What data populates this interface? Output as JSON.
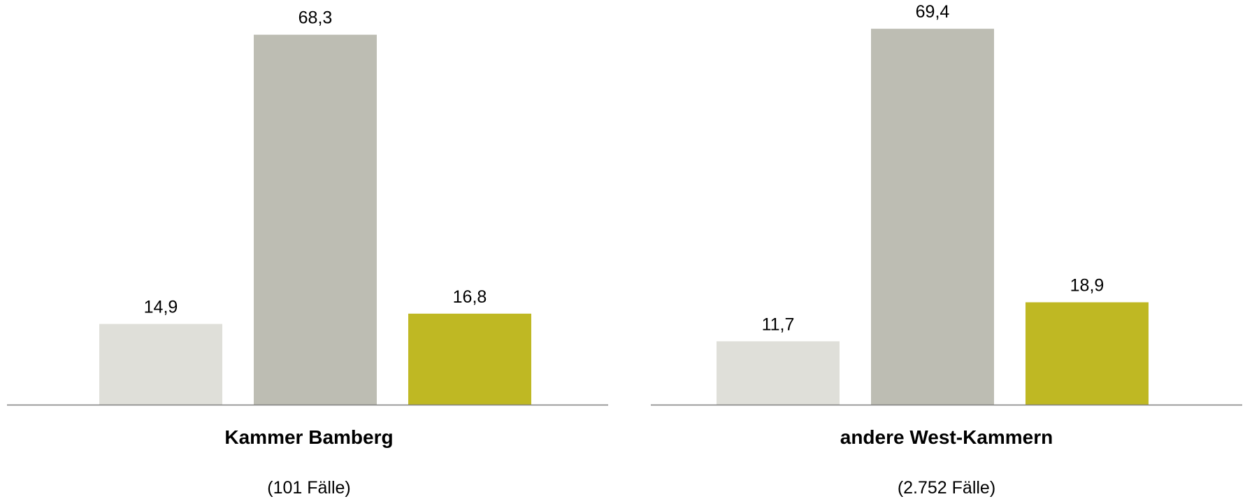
{
  "chart_data": [
    {
      "type": "bar",
      "title": "Kammer Bamberg",
      "subtitle": "(101 Fälle)",
      "categories": [
        "",
        "",
        ""
      ],
      "values": [
        14.9,
        68.3,
        16.8
      ],
      "value_labels": [
        "14,9",
        "68,3",
        "16,8"
      ],
      "colors": [
        "#dfdfd9",
        "#bdbdb3",
        "#bfb823"
      ],
      "ylim": [
        0,
        70
      ],
      "grid": false,
      "xlabel": "",
      "ylabel": ""
    },
    {
      "type": "bar",
      "title": "andere West-Kammern",
      "subtitle": "(2.752 Fälle)",
      "categories": [
        "",
        "",
        ""
      ],
      "values": [
        11.7,
        69.4,
        18.9
      ],
      "value_labels": [
        "11,7",
        "69,4",
        "18,9"
      ],
      "colors": [
        "#dfdfd9",
        "#bdbdb3",
        "#bfb823"
      ],
      "ylim": [
        0,
        70
      ],
      "grid": false,
      "xlabel": "",
      "ylabel": ""
    }
  ],
  "colors": {
    "axis": "#7f7f7f",
    "text": "#000000"
  }
}
